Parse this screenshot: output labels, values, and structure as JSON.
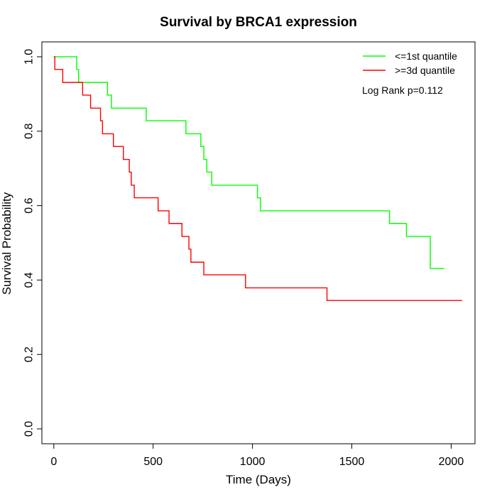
{
  "chart_data": {
    "type": "line",
    "title": "Survival by BRCA1 expression",
    "xlabel": "Time (Days)",
    "ylabel": "Survival Probability",
    "xlim": [
      -60,
      2120
    ],
    "ylim": [
      -0.04,
      1.04
    ],
    "xticks": [
      0,
      500,
      1000,
      1500,
      2000
    ],
    "xtick_labels": [
      "0",
      "500",
      "1000",
      "1500",
      "2000"
    ],
    "yticks": [
      0.0,
      0.2,
      0.4,
      0.6,
      0.8,
      1.0
    ],
    "ytick_labels": [
      "0.0",
      "0.2",
      "0.4",
      "0.6",
      "0.8",
      "1.0"
    ],
    "grid": false,
    "legend_position": "top-right",
    "annotation": "Log Rank p=0.112",
    "series": [
      {
        "name": "<=1st quantile",
        "color": "#00ff00",
        "step": true,
        "x": [
          0,
          115,
          125,
          270,
          290,
          465,
          665,
          740,
          755,
          770,
          795,
          1025,
          1040,
          1690,
          1775,
          1895,
          1965
        ],
        "y": [
          1.0,
          0.966,
          0.931,
          0.897,
          0.862,
          0.828,
          0.793,
          0.759,
          0.724,
          0.69,
          0.655,
          0.621,
          0.586,
          0.552,
          0.517,
          0.431,
          0.431
        ]
      },
      {
        "name": ">=3d quantile",
        "color": "#ff0000",
        "step": true,
        "x": [
          0,
          5,
          45,
          145,
          185,
          235,
          245,
          300,
          350,
          380,
          390,
          405,
          525,
          580,
          645,
          680,
          690,
          755,
          965,
          1375,
          2055
        ],
        "y": [
          1.0,
          0.966,
          0.931,
          0.897,
          0.862,
          0.828,
          0.793,
          0.759,
          0.724,
          0.69,
          0.655,
          0.621,
          0.586,
          0.552,
          0.517,
          0.483,
          0.448,
          0.414,
          0.379,
          0.345,
          0.345
        ]
      }
    ]
  }
}
